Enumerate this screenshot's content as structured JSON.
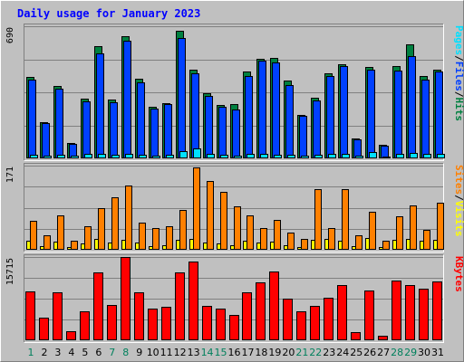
{
  "chart_data": {
    "title": "Daily usage for January 2023",
    "type": "bar",
    "categories": [
      "1",
      "2",
      "3",
      "4",
      "5",
      "6",
      "7",
      "8",
      "9",
      "10",
      "11",
      "12",
      "13",
      "14",
      "15",
      "16",
      "17",
      "18",
      "19",
      "20",
      "21",
      "22",
      "23",
      "24",
      "25",
      "26",
      "27",
      "28",
      "29",
      "30",
      "31"
    ],
    "weekend_days": [
      "1",
      "7",
      "8",
      "14",
      "15",
      "21",
      "22",
      "28",
      "29"
    ],
    "colors": {
      "background": "#C0C0C0",
      "title": "#0000FF",
      "hits": "#008040",
      "files": "#0040FF",
      "pages": "#00E0FF",
      "visits": "#FFFF00",
      "sites": "#FF8000",
      "kbytes": "#FF0000",
      "weekend_label": "#00805C",
      "weekday_label": "#000000"
    },
    "panels": [
      {
        "id": "top",
        "ymax_label": "690",
        "ymax": 690,
        "legend": [
          {
            "text": "Pages",
            "color": "#00E0FF"
          },
          {
            "text": "/",
            "color": "#000000"
          },
          {
            "text": "Files",
            "color": "#0040FF"
          },
          {
            "text": "/",
            "color": "#000000"
          },
          {
            "text": "Hits",
            "color": "#008040"
          }
        ],
        "series": [
          {
            "name": "Hits",
            "values": [
              425,
              187,
              380,
              78,
              310,
              585,
              305,
              640,
              415,
              270,
              290,
              668,
              463,
              338,
              278,
              283,
              453,
              520,
              523,
              405,
              228,
              315,
              443,
              492,
              102,
              475,
              70,
              483,
              594,
              430,
              465
            ]
          },
          {
            "name": "Files",
            "values": [
              410,
              182,
              362,
              75,
              298,
              548,
              295,
              615,
              398,
              260,
              282,
              630,
              445,
              325,
              268,
              255,
              430,
              510,
              502,
              385,
              220,
              303,
              432,
              483,
              98,
              465,
              68,
              460,
              534,
              412,
              455
            ]
          },
          {
            "name": "Pages",
            "values": [
              20,
              15,
              18,
              12,
              22,
              25,
              18,
              23,
              20,
              15,
              18,
              40,
              50,
              22,
              18,
              15,
              22,
              25,
              20,
              18,
              15,
              20,
              22,
              25,
              15,
              35,
              10,
              22,
              30,
              22,
              25
            ]
          }
        ]
      },
      {
        "id": "mid",
        "ymax_label": "171",
        "ymax": 171,
        "legend": [
          {
            "text": "Sites",
            "color": "#FF8000"
          },
          {
            "text": "/",
            "color": "#000000"
          },
          {
            "text": "Visits",
            "color": "#FFFF00"
          }
        ],
        "series": [
          {
            "name": "Visits",
            "values": [
              18,
              8,
              16,
              5,
              12,
              22,
              15,
              20,
              15,
              8,
              10,
              20,
              22,
              14,
              12,
              10,
              18,
              15,
              16,
              10,
              6,
              20,
              22,
              18,
              8,
              24,
              5,
              20,
              22,
              18,
              20
            ]
          },
          {
            "name": "Sites",
            "values": [
              58,
              30,
              70,
              18,
              48,
              85,
              107,
              130,
              55,
              45,
              48,
              80,
              167,
              140,
              117,
              88,
              70,
              45,
              60,
              35,
              22,
              123,
              45,
              123,
              30,
              78,
              18,
              68,
              90,
              40,
              95
            ]
          }
        ]
      },
      {
        "id": "bot",
        "ymax_label": "15715",
        "ymax": 15715,
        "legend": [
          {
            "text": "KBytes",
            "color": "#FF0000"
          }
        ],
        "series": [
          {
            "name": "KBytes",
            "values": [
              9290,
              4350,
              9070,
              1760,
              5510,
              12880,
              6690,
              15715,
              9070,
              6030,
              6240,
              12730,
              14880,
              6460,
              5950,
              4760,
              9120,
              10890,
              12980,
              7830,
              5500,
              6460,
              8050,
              10360,
              1590,
              9360,
              930,
              11350,
              10500,
              9800,
              11120
            ]
          }
        ]
      }
    ]
  }
}
